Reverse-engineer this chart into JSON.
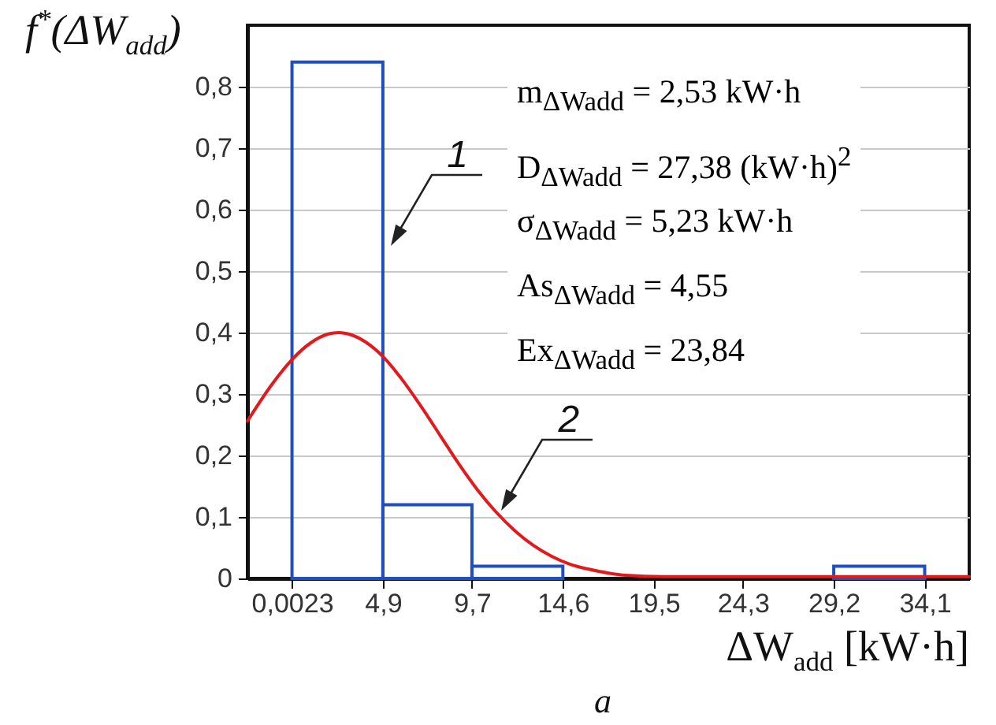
{
  "chart_data": {
    "type": "histogram",
    "xlabel": "ΔW$_{add}$ [kW·h]",
    "ylabel": "f$^{*}$(ΔW$_{add}$)",
    "bins": [
      0.0023,
      4.9,
      9.7,
      14.6,
      29.2,
      34.1
    ],
    "values": [
      0.84,
      0.12,
      0.02,
      0,
      0.02
    ],
    "color": "#1f4fbf",
    "series": [
      {
        "type": "line",
        "color": "#e31a1c",
        "x": [
          -2.4,
          -1,
          0,
          1,
          2,
          2.53,
          3,
          4,
          5,
          6,
          7,
          8,
          9,
          10,
          11,
          12,
          13,
          14,
          15,
          16,
          17,
          18,
          20,
          22,
          25,
          30,
          36.5
        ],
        "values": [
          0.256,
          0.319,
          0.356,
          0.383,
          0.398,
          0.4,
          0.398,
          0.384,
          0.358,
          0.321,
          0.278,
          0.232,
          0.186,
          0.144,
          0.108,
          0.078,
          0.054,
          0.036,
          0.023,
          0.015,
          0.009,
          0.005,
          0.003,
          0.003,
          0.003,
          0.003,
          0.003
        ]
      }
    ],
    "xlim": [
      -2.4,
      36.5
    ],
    "ylim": [
      0,
      0.9
    ],
    "xticks": [
      {
        "value": 0.0023,
        "label": "0,0023"
      },
      {
        "value": 4.9,
        "label": "4,9"
      },
      {
        "value": 9.7,
        "label": "9,7"
      },
      {
        "value": 14.6,
        "label": "14,6"
      },
      {
        "value": 19.5,
        "label": "19,5"
      },
      {
        "value": 24.3,
        "label": "24,3"
      },
      {
        "value": 29.2,
        "label": "29,2"
      },
      {
        "value": 34.1,
        "label": "34,1"
      }
    ],
    "yticks": [
      {
        "value": 0,
        "label": "0"
      },
      {
        "value": 0.1,
        "label": "0,1"
      },
      {
        "value": 0.2,
        "label": "0,2"
      },
      {
        "value": 0.3,
        "label": "0,3"
      },
      {
        "value": 0.4,
        "label": "0,4"
      },
      {
        "value": 0.5,
        "label": "0,5"
      },
      {
        "value": 0.6,
        "label": "0,6"
      },
      {
        "value": 0.7,
        "label": "0,7"
      },
      {
        "value": 0.8,
        "label": "0,8"
      }
    ],
    "grid": "y",
    "annotations": [
      {
        "text": "1",
        "x": 5.3,
        "y": 0.54
      },
      {
        "text": "2",
        "x": 11.3,
        "y": 0.11
      },
      "m$_{ΔWadd}$ = 2,53 kW·h",
      "D$_{ΔWadd}$ = 27,38 (kW·h)$^{2}$",
      "σ$_{ΔWadd}$ = 5,23 kW·h",
      "As$_{ΔWadd}$ = 4,55",
      "Ex$_{ΔWadd}$ = 23,84",
      "a"
    ]
  }
}
